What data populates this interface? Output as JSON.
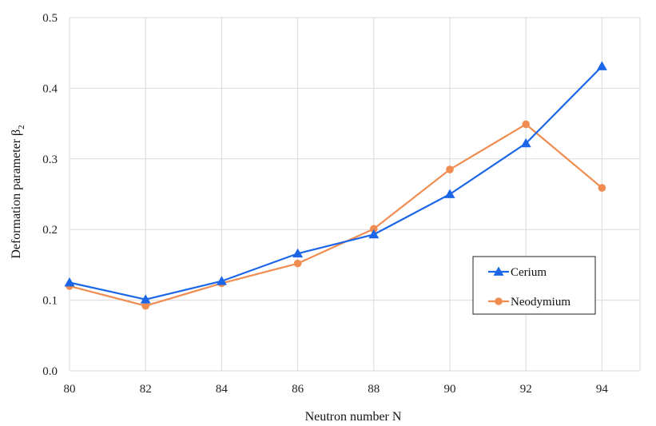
{
  "chart_data": {
    "type": "line",
    "title": "",
    "xlabel": "Neutron number N",
    "ylabel_main": "Deformation parameter β",
    "ylabel_sub": "2",
    "x": [
      80,
      82,
      84,
      86,
      88,
      90,
      92,
      94
    ],
    "xticks": [
      "80",
      "82",
      "84",
      "86",
      "88",
      "90",
      "92",
      "94"
    ],
    "yticks": [
      "0.0",
      "0.1",
      "0.2",
      "0.3",
      "0.4",
      "0.5"
    ],
    "xlim": [
      80,
      95
    ],
    "ylim": [
      0,
      0.5
    ],
    "grid": true,
    "legend_position": "right",
    "series": [
      {
        "name": "Cerium",
        "marker": "triangle",
        "color": "#1a66e6",
        "values": [
          0.125,
          0.101,
          0.127,
          0.166,
          0.193,
          0.25,
          0.322,
          0.431
        ]
      },
      {
        "name": "Neodymium",
        "marker": "circle",
        "color": "#f08c4f",
        "values": [
          0.12,
          0.092,
          0.124,
          0.152,
          0.201,
          0.285,
          0.349,
          0.259
        ]
      }
    ]
  }
}
